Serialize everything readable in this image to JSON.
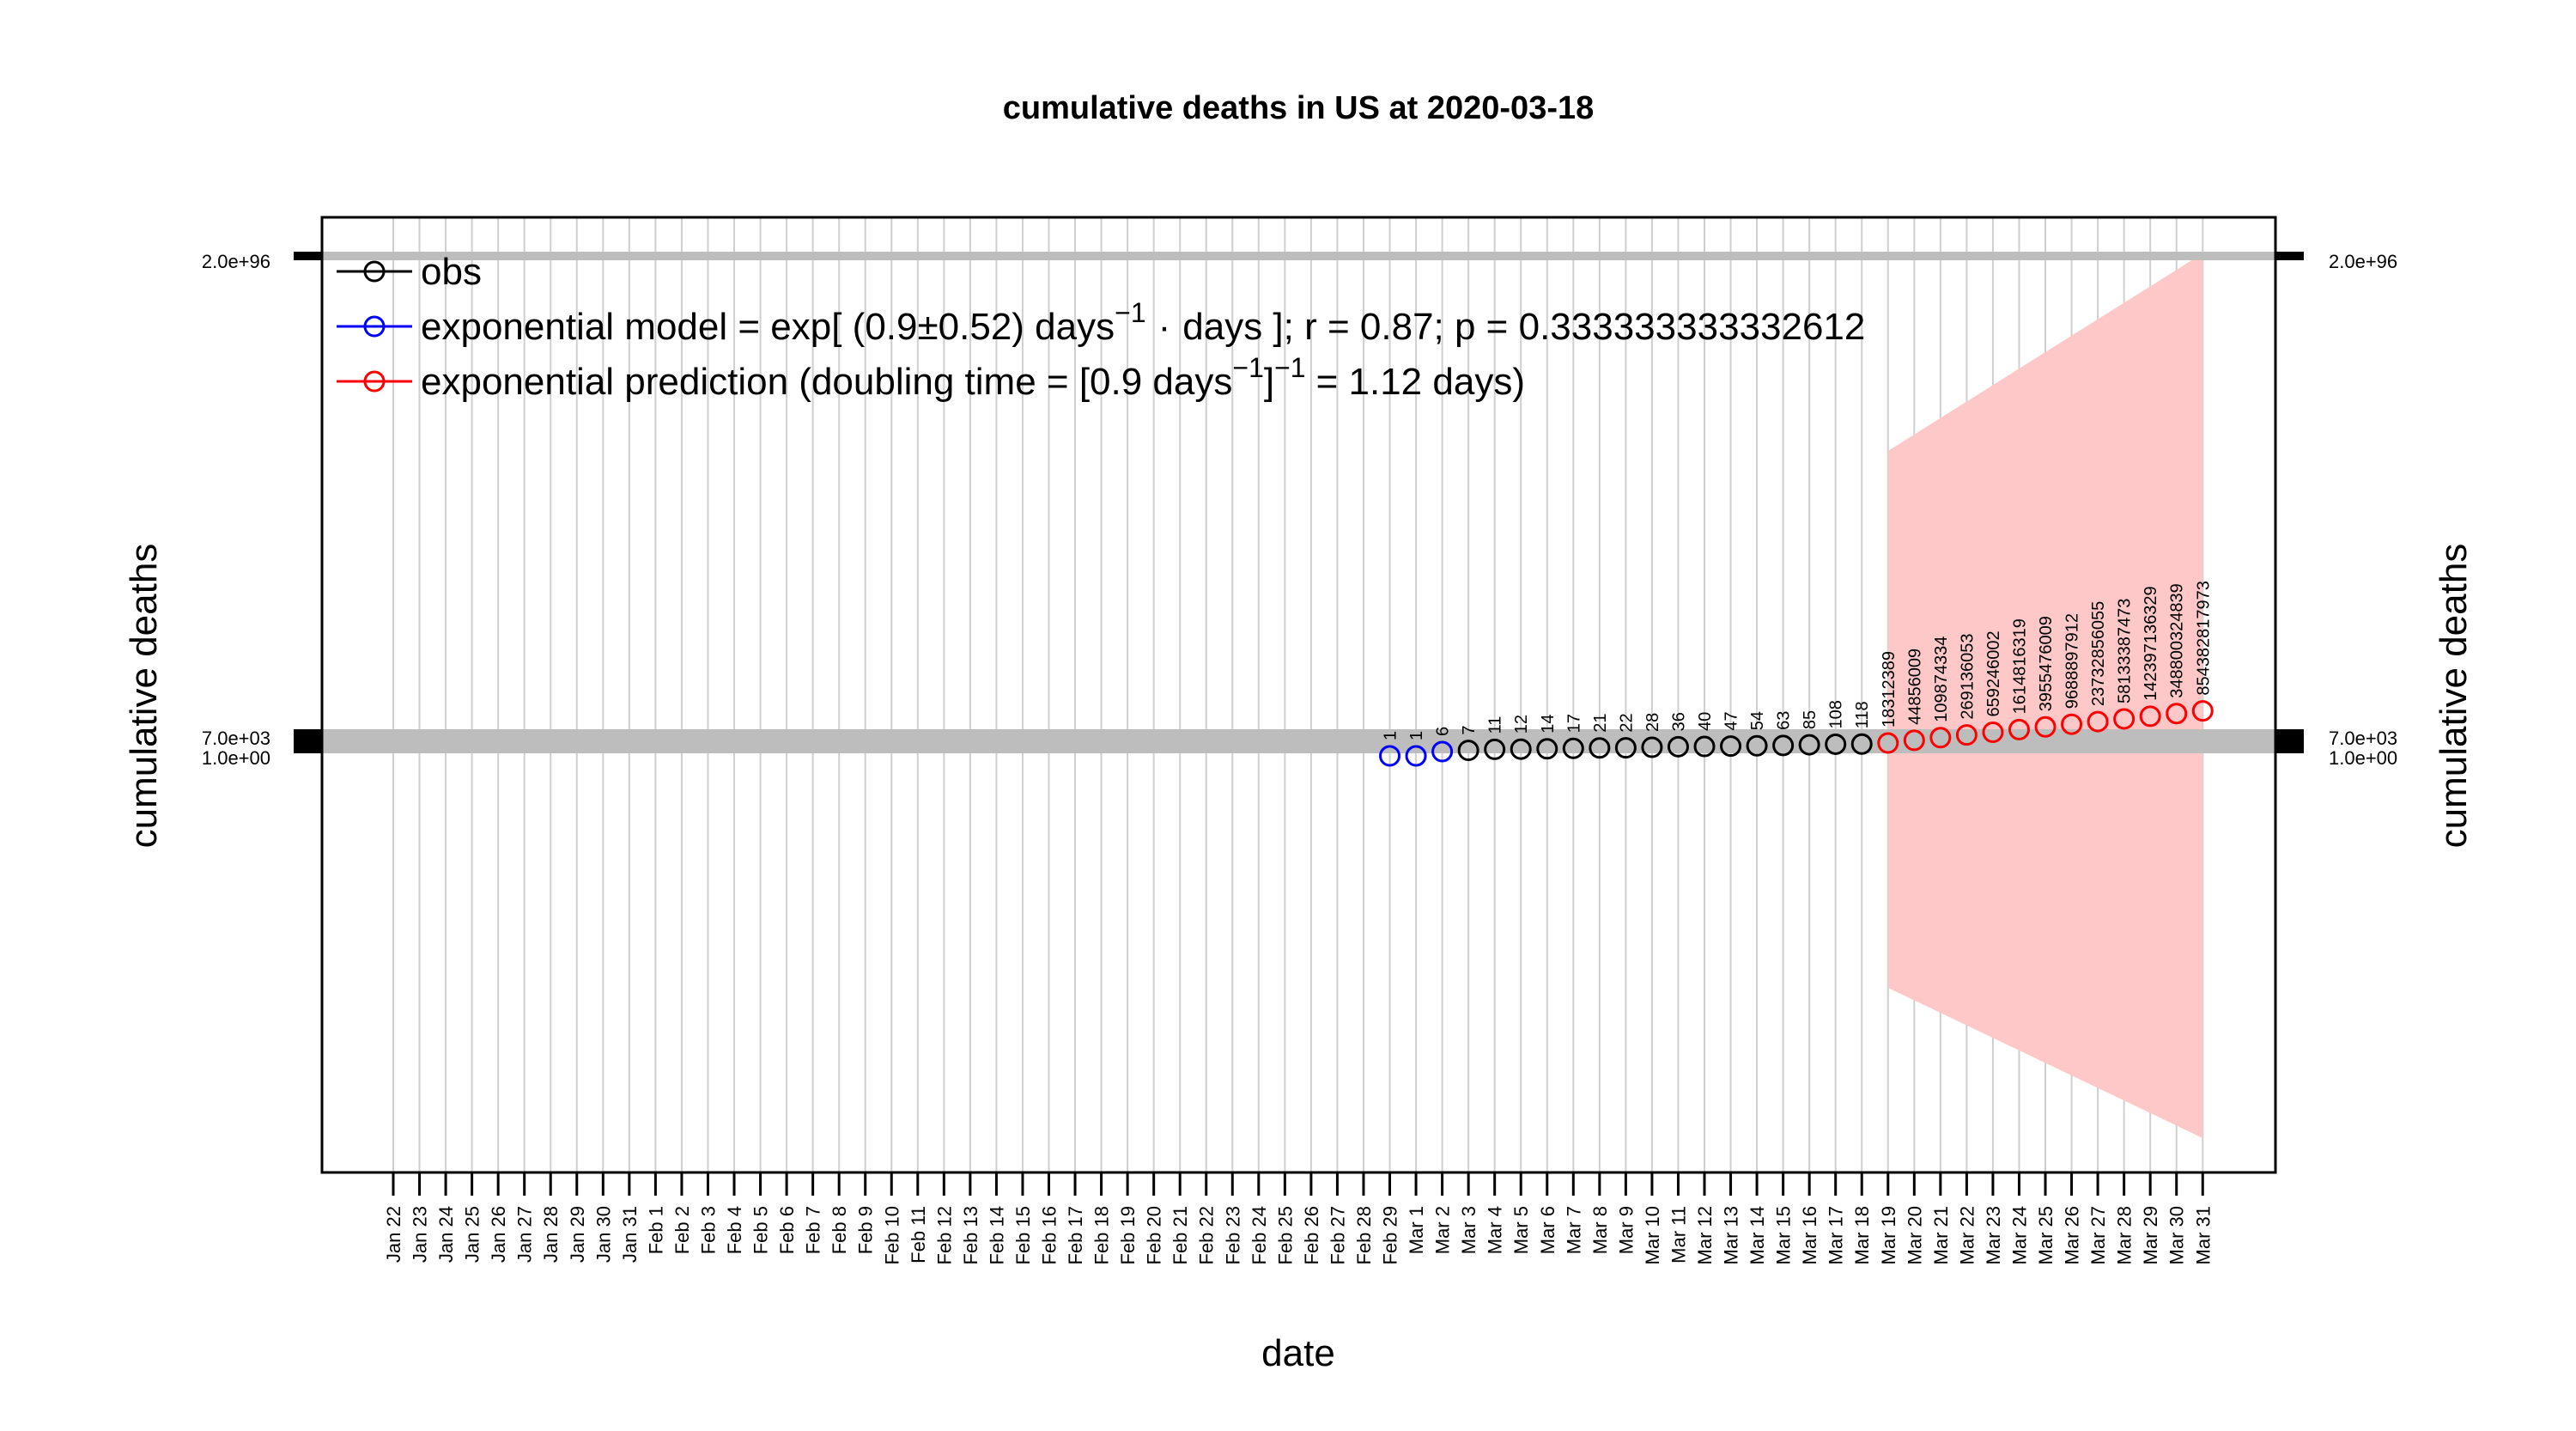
{
  "chart_data": {
    "type": "scatter",
    "title": "cumulative deaths in US at 2020-03-18",
    "xlabel": "date",
    "ylabel_left": "cumulative deaths",
    "ylabel_right": "cumulative deaths",
    "x_dates": [
      "Jan 22",
      "Jan 23",
      "Jan 24",
      "Jan 25",
      "Jan 26",
      "Jan 27",
      "Jan 28",
      "Jan 29",
      "Jan 30",
      "Jan 31",
      "Feb 1",
      "Feb 2",
      "Feb 3",
      "Feb 4",
      "Feb 5",
      "Feb 6",
      "Feb 7",
      "Feb 8",
      "Feb 9",
      "Feb 10",
      "Feb 11",
      "Feb 12",
      "Feb 13",
      "Feb 14",
      "Feb 15",
      "Feb 16",
      "Feb 17",
      "Feb 18",
      "Feb 19",
      "Feb 20",
      "Feb 21",
      "Feb 22",
      "Feb 23",
      "Feb 24",
      "Feb 25",
      "Feb 26",
      "Feb 27",
      "Feb 28",
      "Feb 29",
      "Mar 1",
      "Mar 2",
      "Mar 3",
      "Mar 4",
      "Mar 5",
      "Mar 6",
      "Mar 7",
      "Mar 8",
      "Mar 9",
      "Mar 10",
      "Mar 11",
      "Mar 12",
      "Mar 13",
      "Mar 14",
      "Mar 15",
      "Mar 16",
      "Mar 17",
      "Mar 18",
      "Mar 19",
      "Mar 20",
      "Mar 21",
      "Mar 22",
      "Mar 23",
      "Mar 24",
      "Mar 25",
      "Mar 26",
      "Mar 27",
      "Mar 28",
      "Mar 29",
      "Mar 30",
      "Mar 31"
    ],
    "y_ticks": {
      "top": "2.0e+96",
      "upper": "7.0e+03",
      "lower": "1.0e+00"
    },
    "legend": {
      "position": "top-left",
      "obs": "obs",
      "model_prefix": "exponential model = exp[ (0.9",
      "model_pm": "±",
      "model_mid": "0.52) days",
      "model_sup": "−1",
      "model_dot": "·",
      "model_suffix": "days ]; r = 0.87; p = 0.333333333332612",
      "pred_prefix": "exponential prediction (doubling time = [0.9 days",
      "pred_sup1": "−1",
      "pred_mid": "]",
      "pred_sup2": "−1",
      "pred_suffix": "= 1.12 days)"
    },
    "series": [
      {
        "name": "exponential model",
        "color": "#0000ff",
        "x": [
          "Feb 29",
          "Mar 1",
          "Mar 2"
        ],
        "y": [
          1,
          1,
          6
        ],
        "labels": [
          "1",
          "1",
          "6"
        ]
      },
      {
        "name": "obs",
        "color": "#000000",
        "x": [
          "Mar 3",
          "Mar 4",
          "Mar 5",
          "Mar 6",
          "Mar 7",
          "Mar 8",
          "Mar 9",
          "Mar 10",
          "Mar 11",
          "Mar 12",
          "Mar 13",
          "Mar 14",
          "Mar 15",
          "Mar 16",
          "Mar 17",
          "Mar 18"
        ],
        "y": [
          7,
          11,
          12,
          14,
          17,
          21,
          22,
          28,
          36,
          40,
          47,
          54,
          63,
          85,
          108,
          118
        ],
        "labels": [
          "7",
          "11",
          "12",
          "14",
          "17",
          "21",
          "22",
          "28",
          "36",
          "40",
          "47",
          "54",
          "63",
          "85",
          "108",
          "118"
        ]
      },
      {
        "name": "exponential prediction",
        "color": "#ff0000",
        "x": [
          "Mar 19",
          "Mar 20",
          "Mar 21",
          "Mar 22",
          "Mar 23",
          "Mar 24",
          "Mar 25",
          "Mar 26",
          "Mar 27",
          "Mar 28",
          "Mar 29",
          "Mar 30",
          "Mar 31"
        ],
        "y": [
          18312389,
          44856009,
          109874334,
          269136053,
          659246002,
          1614816319,
          3955476009,
          9688897912,
          23732856055,
          58133387473,
          142397136329,
          348800324839,
          854382817973
        ],
        "labels": [
          "18312389",
          "44856009",
          "109874334",
          "269136053",
          "659246002",
          "1614816319",
          "3955476009",
          "9688897912",
          "23732856055",
          "58133387473",
          "142397136329",
          "348800324839",
          "854382817973"
        ]
      }
    ],
    "confidence_band": {
      "color": "#ffc8c8",
      "x_start": "Mar 19",
      "x_end": "Mar 31"
    },
    "grid": "vertical"
  }
}
